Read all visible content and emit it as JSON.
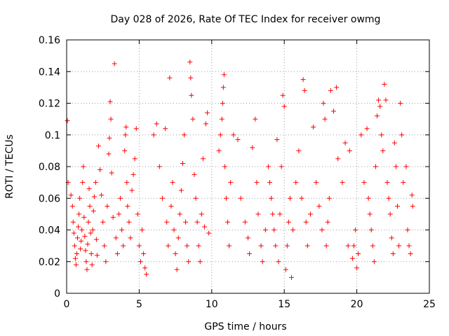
{
  "chart_data": {
    "type": "scatter",
    "title": "Day 028 of 2026, Rate Of TEC Index for receiver owmg",
    "xlabel": "GPS time / hours",
    "ylabel": "ROTI / TECUs",
    "xlim": [
      0,
      25
    ],
    "ylim": [
      0,
      0.16
    ],
    "xticks": [
      0,
      5,
      10,
      15,
      20,
      25
    ],
    "yticks": [
      0,
      0.02,
      0.04,
      0.06,
      0.08,
      0.1,
      0.12,
      0.14,
      0.16
    ],
    "xtick_labels": [
      "0",
      "5",
      "10",
      "15",
      "20",
      "25"
    ],
    "ytick_labels": [
      "0",
      "0.02",
      "0.04",
      "0.06",
      "0.08",
      "0.1",
      "0.12",
      "0.14",
      "0.16"
    ],
    "grid": true,
    "marker": "+",
    "color": "#ff0000",
    "series": [
      {
        "points": [
          [
            0.05,
            0.109
          ],
          [
            0.1,
            0.07
          ],
          [
            0.3,
            0.062
          ],
          [
            0.4,
            0.055
          ],
          [
            0.45,
            0.045
          ],
          [
            0.5,
            0.038
          ],
          [
            0.55,
            0.03
          ],
          [
            0.6,
            0.022
          ],
          [
            0.65,
            0.018
          ],
          [
            0.7,
            0.025
          ],
          [
            0.75,
            0.035
          ],
          [
            0.8,
            0.042
          ],
          [
            0.85,
            0.05
          ],
          [
            0.9,
            0.06
          ],
          [
            0.95,
            0.028
          ],
          [
            1.0,
            0.033
          ],
          [
            1.05,
            0.04
          ],
          [
            1.1,
            0.07
          ],
          [
            1.15,
            0.08
          ],
          [
            1.2,
            0.048
          ],
          [
            1.25,
            0.036
          ],
          [
            1.3,
            0.027
          ],
          [
            1.35,
            0.02
          ],
          [
            1.4,
            0.015
          ],
          [
            1.45,
            0.031
          ],
          [
            1.5,
            0.045
          ],
          [
            1.55,
            0.066
          ],
          [
            1.6,
            0.055
          ],
          [
            1.65,
            0.038
          ],
          [
            1.7,
            0.025
          ],
          [
            1.75,
            0.018
          ],
          [
            1.8,
            0.04
          ],
          [
            1.85,
            0.052
          ],
          [
            1.9,
            0.061
          ],
          [
            2.0,
            0.07
          ],
          [
            2.05,
            0.034
          ],
          [
            2.1,
            0.024
          ],
          [
            2.2,
            0.093
          ],
          [
            2.3,
            0.078
          ],
          [
            2.4,
            0.062
          ],
          [
            2.5,
            0.045
          ],
          [
            2.6,
            0.03
          ],
          [
            2.7,
            0.02
          ],
          [
            2.8,
            0.055
          ],
          [
            2.9,
            0.088
          ],
          [
            2.95,
            0.098
          ],
          [
            3.0,
            0.121
          ],
          [
            3.05,
            0.11
          ],
          [
            3.1,
            0.076
          ],
          [
            3.2,
            0.048
          ],
          [
            3.3,
            0.145
          ],
          [
            3.4,
            0.035
          ],
          [
            3.5,
            0.025
          ],
          [
            3.6,
            0.05
          ],
          [
            3.7,
            0.06
          ],
          [
            3.8,
            0.04
          ],
          [
            3.9,
            0.03
          ],
          [
            4.0,
            0.09
          ],
          [
            4.05,
            0.1
          ],
          [
            4.1,
            0.105
          ],
          [
            4.15,
            0.07
          ],
          [
            4.2,
            0.055
          ],
          [
            4.3,
            0.045
          ],
          [
            4.4,
            0.035
          ],
          [
            4.5,
            0.065
          ],
          [
            4.6,
            0.075
          ],
          [
            4.7,
            0.085
          ],
          [
            4.8,
            0.104
          ],
          [
            4.9,
            0.05
          ],
          [
            5.0,
            0.03
          ],
          [
            5.1,
            0.02
          ],
          [
            5.2,
            0.04
          ],
          [
            5.3,
            0.025
          ],
          [
            5.4,
            0.016
          ],
          [
            5.5,
            0.012
          ],
          [
            6.0,
            0.1
          ],
          [
            6.2,
            0.107
          ],
          [
            6.4,
            0.08
          ],
          [
            6.6,
            0.06
          ],
          [
            6.8,
            0.104
          ],
          [
            6.9,
            0.045
          ],
          [
            7.0,
            0.03
          ],
          [
            7.1,
            0.136
          ],
          [
            7.2,
            0.055
          ],
          [
            7.3,
            0.07
          ],
          [
            7.4,
            0.04
          ],
          [
            7.5,
            0.025
          ],
          [
            7.6,
            0.015
          ],
          [
            7.7,
            0.035
          ],
          [
            7.8,
            0.05
          ],
          [
            7.9,
            0.065
          ],
          [
            8.0,
            0.082
          ],
          [
            8.1,
            0.1
          ],
          [
            8.2,
            0.045
          ],
          [
            8.3,
            0.03
          ],
          [
            8.4,
            0.02
          ],
          [
            8.5,
            0.146
          ],
          [
            8.55,
            0.136
          ],
          [
            8.6,
            0.125
          ],
          [
            8.7,
            0.11
          ],
          [
            8.8,
            0.075
          ],
          [
            8.9,
            0.06
          ],
          [
            9.0,
            0.045
          ],
          [
            9.1,
            0.03
          ],
          [
            9.2,
            0.02
          ],
          [
            9.3,
            0.05
          ],
          [
            9.4,
            0.085
          ],
          [
            9.5,
            0.042
          ],
          [
            9.6,
            0.107
          ],
          [
            9.7,
            0.114
          ],
          [
            9.8,
            0.038
          ],
          [
            10.5,
            0.09
          ],
          [
            10.6,
            0.1
          ],
          [
            10.7,
            0.11
          ],
          [
            10.75,
            0.12
          ],
          [
            10.8,
            0.13
          ],
          [
            10.85,
            0.138
          ],
          [
            10.9,
            0.08
          ],
          [
            11.0,
            0.06
          ],
          [
            11.1,
            0.045
          ],
          [
            11.2,
            0.03
          ],
          [
            11.3,
            0.07
          ],
          [
            11.5,
            0.1
          ],
          [
            11.8,
            0.097
          ],
          [
            12.0,
            0.06
          ],
          [
            12.3,
            0.045
          ],
          [
            12.5,
            0.035
          ],
          [
            12.6,
            0.025
          ],
          [
            12.8,
            0.092
          ],
          [
            13.0,
            0.11
          ],
          [
            13.1,
            0.07
          ],
          [
            13.2,
            0.05
          ],
          [
            13.4,
            0.03
          ],
          [
            13.5,
            0.02
          ],
          [
            13.7,
            0.04
          ],
          [
            13.9,
            0.08
          ],
          [
            14.0,
            0.07
          ],
          [
            14.1,
            0.06
          ],
          [
            14.2,
            0.05
          ],
          [
            14.3,
            0.04
          ],
          [
            14.4,
            0.03
          ],
          [
            14.5,
            0.097
          ],
          [
            14.6,
            0.02
          ],
          [
            14.7,
            0.05
          ],
          [
            14.8,
            0.08
          ],
          [
            14.9,
            0.125
          ],
          [
            15.0,
            0.118
          ],
          [
            15.1,
            0.015
          ],
          [
            15.2,
            0.03
          ],
          [
            15.3,
            0.045
          ],
          [
            15.4,
            0.06
          ],
          [
            15.5,
            0.01
          ],
          [
            15.6,
            0.04
          ],
          [
            15.8,
            0.07
          ],
          [
            16.0,
            0.09
          ],
          [
            16.2,
            0.06
          ],
          [
            16.3,
            0.135
          ],
          [
            16.4,
            0.128
          ],
          [
            16.5,
            0.045
          ],
          [
            16.6,
            0.03
          ],
          [
            16.8,
            0.05
          ],
          [
            17.0,
            0.105
          ],
          [
            17.2,
            0.07
          ],
          [
            17.4,
            0.055
          ],
          [
            17.6,
            0.04
          ],
          [
            17.7,
            0.12
          ],
          [
            17.8,
            0.11
          ],
          [
            17.9,
            0.03
          ],
          [
            18.0,
            0.045
          ],
          [
            18.1,
            0.06
          ],
          [
            18.2,
            0.128
          ],
          [
            18.4,
            0.115
          ],
          [
            18.6,
            0.13
          ],
          [
            18.7,
            0.085
          ],
          [
            19.0,
            0.07
          ],
          [
            19.2,
            0.095
          ],
          [
            19.4,
            0.03
          ],
          [
            19.5,
            0.09
          ],
          [
            19.7,
            0.022
          ],
          [
            19.8,
            0.03
          ],
          [
            19.9,
            0.04
          ],
          [
            20.0,
            0.016
          ],
          [
            20.1,
            0.025
          ],
          [
            20.3,
            0.1
          ],
          [
            20.5,
            0.07
          ],
          [
            20.7,
            0.104
          ],
          [
            20.8,
            0.06
          ],
          [
            20.9,
            0.05
          ],
          [
            21.0,
            0.04
          ],
          [
            21.1,
            0.03
          ],
          [
            21.2,
            0.02
          ],
          [
            21.3,
            0.08
          ],
          [
            21.4,
            0.112
          ],
          [
            21.5,
            0.122
          ],
          [
            21.6,
            0.118
          ],
          [
            21.7,
            0.1
          ],
          [
            21.8,
            0.09
          ],
          [
            21.9,
            0.132
          ],
          [
            22.0,
            0.122
          ],
          [
            22.1,
            0.07
          ],
          [
            22.2,
            0.06
          ],
          [
            22.3,
            0.05
          ],
          [
            22.4,
            0.035
          ],
          [
            22.5,
            0.025
          ],
          [
            22.6,
            0.095
          ],
          [
            22.7,
            0.08
          ],
          [
            22.8,
            0.055
          ],
          [
            22.9,
            0.03
          ],
          [
            23.0,
            0.12
          ],
          [
            23.1,
            0.1
          ],
          [
            23.2,
            0.07
          ],
          [
            23.4,
            0.08
          ],
          [
            23.5,
            0.04
          ],
          [
            23.6,
            0.03
          ],
          [
            23.7,
            0.025
          ],
          [
            23.8,
            0.062
          ],
          [
            23.85,
            0.055
          ]
        ]
      }
    ]
  }
}
